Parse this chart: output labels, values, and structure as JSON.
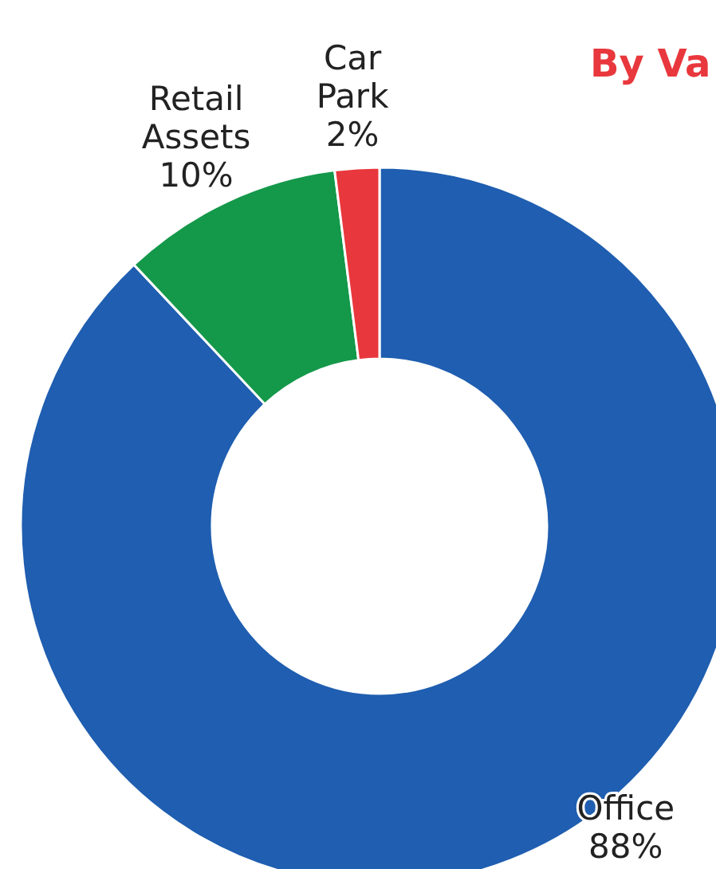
{
  "chart_data": {
    "type": "donut",
    "title": "By Va",
    "categories": [
      "Office",
      "Retail Assets",
      "Car Park"
    ],
    "values": [
      88,
      10,
      2
    ],
    "colors": [
      "#1f5eb0",
      "#14984a",
      "#e8383d"
    ],
    "value_labels": [
      "88%",
      "10%",
      "2%"
    ]
  }
}
